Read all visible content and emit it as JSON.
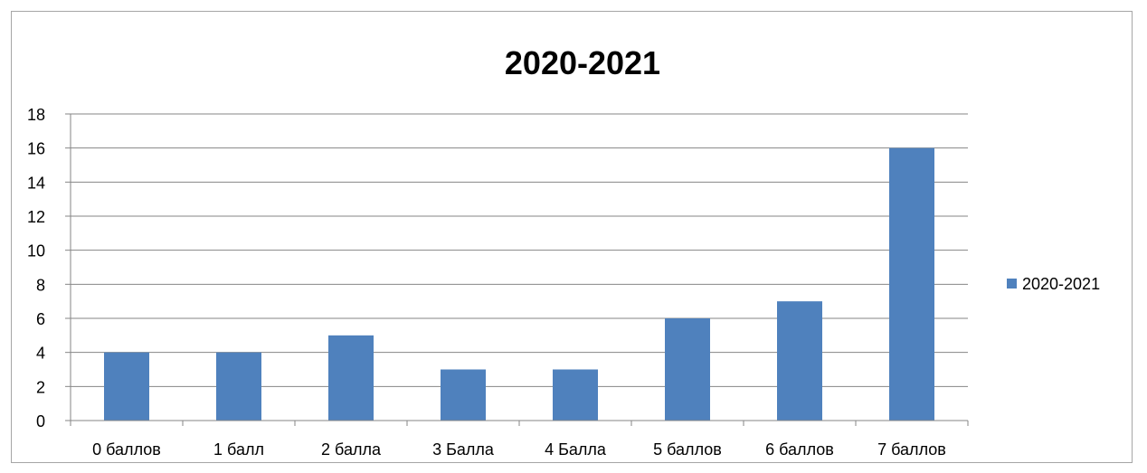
{
  "chart_data": {
    "type": "bar",
    "title": "2020-2021",
    "categories": [
      "0 баллов",
      "1 балл",
      "2 балла",
      "3 Балла",
      "4 Балла",
      "5 баллов",
      "6 баллов",
      "7 баллов"
    ],
    "series": [
      {
        "name": "2020-2021",
        "values": [
          4,
          4,
          5,
          3,
          3,
          6,
          7,
          16
        ],
        "color": "#4f81bd"
      }
    ],
    "yticks": [
      "0",
      "2",
      "4",
      "6",
      "8",
      "10",
      "12",
      "14",
      "16",
      "18"
    ],
    "ylim": [
      0,
      18
    ],
    "grid": true,
    "legend": "right"
  }
}
